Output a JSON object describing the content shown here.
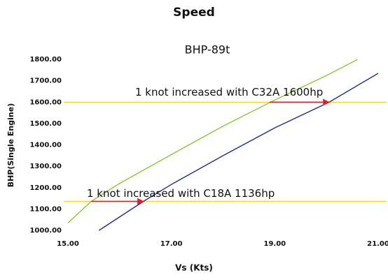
{
  "chart_data": {
    "type": "line",
    "title": "Speed",
    "subtitle": "BHP-89t",
    "xlabel": "Vs (Kts)",
    "ylabel": "BHP(Single Engine)",
    "xlim": [
      15,
      21
    ],
    "ylim": [
      1000,
      1820
    ],
    "xticks": [
      {
        "value": 15,
        "label": "15.00"
      },
      {
        "value": 17,
        "label": "17.00"
      },
      {
        "value": 19,
        "label": "19.00"
      },
      {
        "value": 21,
        "label": "21.00"
      }
    ],
    "yticks": [
      {
        "value": 1000,
        "label": "1000.00"
      },
      {
        "value": 1100,
        "label": "1100.00"
      },
      {
        "value": 1200,
        "label": "1200.00"
      },
      {
        "value": 1300,
        "label": "1300.00"
      },
      {
        "value": 1400,
        "label": "1400.00"
      },
      {
        "value": 1500,
        "label": "1500.00"
      },
      {
        "value": 1600,
        "label": "1600.00"
      },
      {
        "value": 1700,
        "label": "1700.00"
      },
      {
        "value": 1800,
        "label": "1800.00"
      }
    ],
    "grid": false,
    "series": [
      {
        "color": "#8cc63f",
        "x": [
          15,
          15.45,
          16,
          17,
          18,
          19,
          20,
          20.6
        ],
        "values": [
          1035,
          1136,
          1220,
          1355,
          1488,
          1610,
          1725,
          1800
        ]
      },
      {
        "color": "#1f2f8c",
        "x": [
          15.6,
          16.46,
          17,
          18,
          19,
          20.05,
          21
        ],
        "values": [
          1000,
          1136,
          1215,
          1350,
          1480,
          1600,
          1735
        ]
      }
    ],
    "hlines": [
      {
        "color": "#f2d52a",
        "value": 1136
      },
      {
        "color": "#f2d52a",
        "value": 1600
      }
    ],
    "annotations": [
      {
        "text": "1 knot increased with C18A 1136hp",
        "x": 15.45,
        "x2": 16.46,
        "y": 1136,
        "color": "#e02020"
      },
      {
        "text": "1 knot increased with C32A 1600hp",
        "x": 18.9,
        "x2": 20.05,
        "y": 1600,
        "color": "#e02020"
      }
    ]
  }
}
